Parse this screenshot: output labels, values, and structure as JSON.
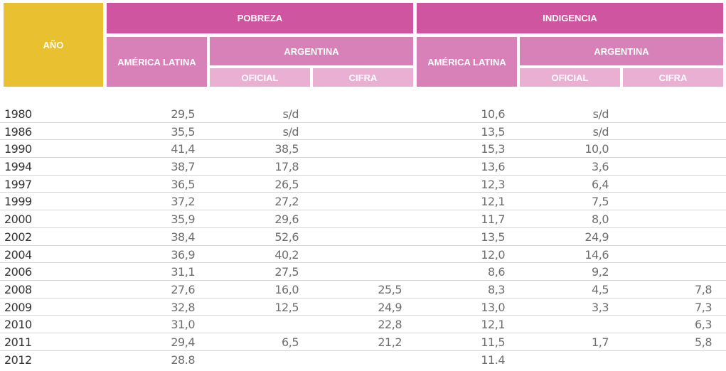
{
  "header": {
    "year": "AÑO",
    "poverty": "POBREZA",
    "indigence": "INDIGENCIA",
    "latin_america": "AMÉRICA LATINA",
    "argentina": "ARGENTINA",
    "official": "OFICIAL",
    "cifra": "CIFRA"
  },
  "rows": [
    {
      "year": "1980",
      "pov_la": "29,5",
      "pov_of": "s/d",
      "pov_ci": "",
      "ind_la": "10,6",
      "ind_of": "s/d",
      "ind_ci": ""
    },
    {
      "year": "1986",
      "pov_la": "35,5",
      "pov_of": "s/d",
      "pov_ci": "",
      "ind_la": "13,5",
      "ind_of": "s/d",
      "ind_ci": ""
    },
    {
      "year": "1990",
      "pov_la": "41,4",
      "pov_of": "38,5",
      "pov_ci": "",
      "ind_la": "15,3",
      "ind_of": "10,0",
      "ind_ci": ""
    },
    {
      "year": "1994",
      "pov_la": "38,7",
      "pov_of": "17,8",
      "pov_ci": "",
      "ind_la": "13,6",
      "ind_of": "3,6",
      "ind_ci": ""
    },
    {
      "year": "1997",
      "pov_la": "36,5",
      "pov_of": "26,5",
      "pov_ci": "",
      "ind_la": "12,3",
      "ind_of": "6,4",
      "ind_ci": ""
    },
    {
      "year": "1999",
      "pov_la": "37,2",
      "pov_of": "27,2",
      "pov_ci": "",
      "ind_la": "12,1",
      "ind_of": "7,5",
      "ind_ci": ""
    },
    {
      "year": "2000",
      "pov_la": "35,9",
      "pov_of": "29,6",
      "pov_ci": "",
      "ind_la": "11,7",
      "ind_of": "8,0",
      "ind_ci": ""
    },
    {
      "year": "2002",
      "pov_la": "38,4",
      "pov_of": "52,6",
      "pov_ci": "",
      "ind_la": "13,5",
      "ind_of": "24,9",
      "ind_ci": ""
    },
    {
      "year": "2004",
      "pov_la": "36,9",
      "pov_of": "40,2",
      "pov_ci": "",
      "ind_la": "12,0",
      "ind_of": "14,6",
      "ind_ci": ""
    },
    {
      "year": "2006",
      "pov_la": "31,1",
      "pov_of": "27,5",
      "pov_ci": "",
      "ind_la": "8,6",
      "ind_of": "9,2",
      "ind_ci": ""
    },
    {
      "year": "2008",
      "pov_la": "27,6",
      "pov_of": "16,0",
      "pov_ci": "25,5",
      "ind_la": "8,3",
      "ind_of": "4,5",
      "ind_ci": "7,8"
    },
    {
      "year": "2009",
      "pov_la": "32,8",
      "pov_of": "12,5",
      "pov_ci": "24,9",
      "ind_la": "13,0",
      "ind_of": "3,3",
      "ind_ci": "7,3"
    },
    {
      "year": "2010",
      "pov_la": "31,0",
      "pov_of": "",
      "pov_ci": "22,8",
      "ind_la": "12,1",
      "ind_of": "",
      "ind_ci": "6,3"
    },
    {
      "year": "2011",
      "pov_la": "29,4",
      "pov_of": "6,5",
      "pov_ci": "21,2",
      "ind_la": "11,5",
      "ind_of": "1,7",
      "ind_ci": "5,8"
    },
    {
      "year": "2012",
      "pov_la": "28.8",
      "pov_of": "",
      "pov_ci": "",
      "ind_la": "11.4",
      "ind_of": "",
      "ind_ci": ""
    }
  ]
}
